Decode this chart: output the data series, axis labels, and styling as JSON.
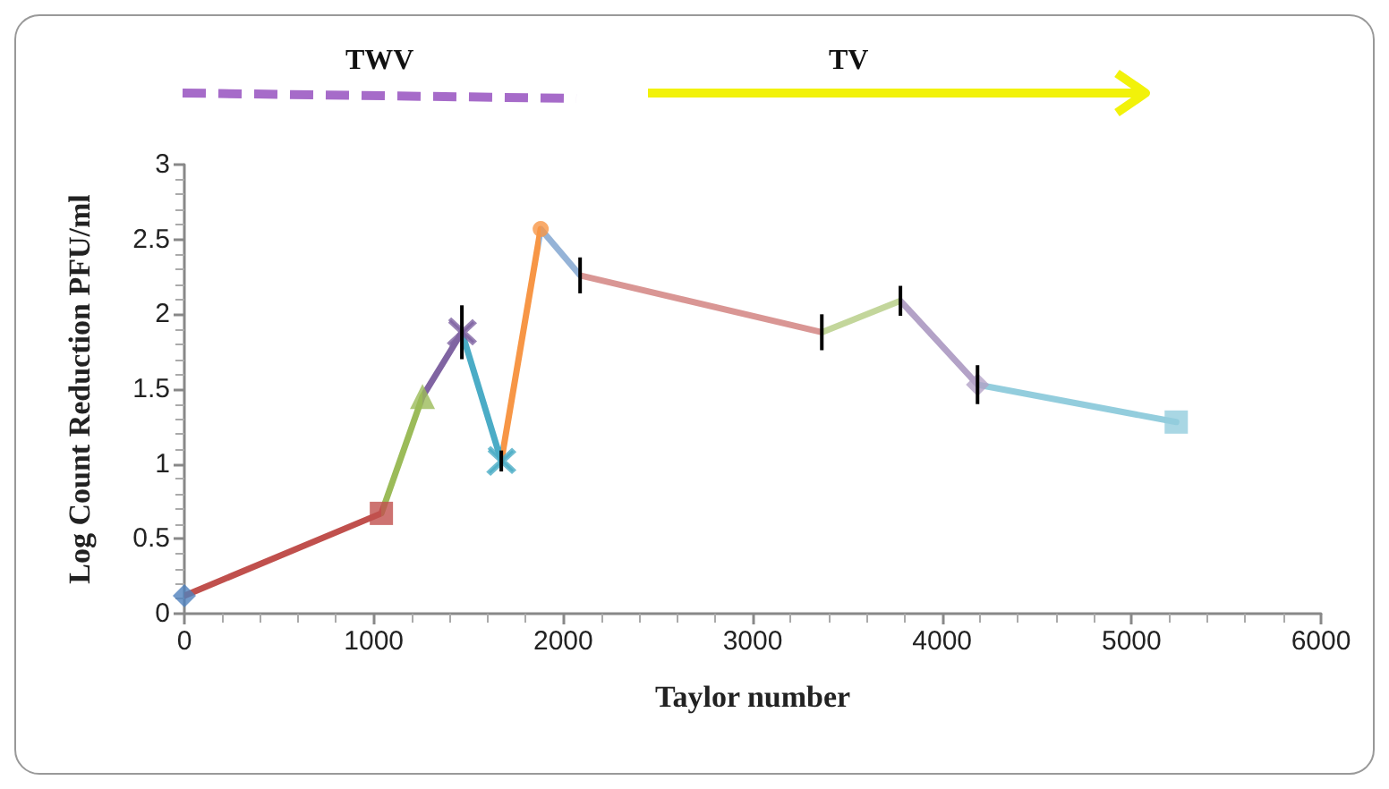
{
  "chart_data": {
    "type": "line",
    "xlabel": "Taylor number",
    "ylabel": "Log Count Reduction PFU/ml",
    "annotations": [
      "TWV",
      "TV"
    ],
    "xlim": [
      0,
      6000
    ],
    "xticks": [
      0,
      1000,
      2000,
      3000,
      4000,
      5000,
      6000
    ],
    "ylim": [
      0,
      3
    ],
    "yticks": [
      0,
      0.5,
      1,
      1.5,
      2,
      2.5,
      3
    ],
    "grid": false,
    "series": [
      {
        "marker": "none",
        "x": [
          0,
          1040,
          1257,
          1465,
          1673,
          1881,
          2089,
          3365,
          3780,
          4187,
          5236
        ],
        "values": [
          0.12,
          0.67,
          1.45,
          1.88,
          1.02,
          2.57,
          2.26,
          1.88,
          2.09,
          1.53,
          1.28
        ],
        "errors": [
          null,
          null,
          null,
          0.18,
          0.07,
          null,
          0.12,
          0.12,
          0.1,
          0.13,
          null
        ],
        "colors": [
          "#c0504d",
          "#9bbb59",
          "#8064a2",
          "#4bacc6",
          "#f79646",
          "#95b3d7",
          "#d99694",
          "#c3d69b",
          "#b3a2c7",
          "#93cddd",
          "#93cddd"
        ]
      },
      {
        "type": "scatter",
        "marker": "diamond",
        "color": "#4f81bd",
        "x": [
          0
        ],
        "values": [
          0.12
        ]
      },
      {
        "type": "scatter",
        "marker": "square",
        "color": "#c0504d",
        "x": [
          1040
        ],
        "values": [
          0.67
        ]
      },
      {
        "type": "scatter",
        "marker": "triangle",
        "color": "#9bbb59",
        "x": [
          1257
        ],
        "values": [
          1.45
        ]
      },
      {
        "type": "scatter",
        "marker": "cross",
        "color": "#8064a2",
        "x": [
          1465
        ],
        "values": [
          1.88
        ]
      },
      {
        "type": "scatter",
        "marker": "cross",
        "color": "#4bacc6",
        "x": [
          1673
        ],
        "values": [
          1.02
        ]
      },
      {
        "type": "scatter",
        "marker": "circle",
        "color": "#f79646",
        "x": [
          1881
        ],
        "values": [
          2.57
        ]
      },
      {
        "type": "scatter",
        "marker": "diamond",
        "color": "#b3a2c7",
        "x": [
          4187
        ],
        "values": [
          1.53
        ]
      },
      {
        "type": "scatter",
        "marker": "square",
        "color": "#93cddd",
        "x": [
          5236
        ],
        "values": [
          1.28
        ]
      }
    ]
  }
}
